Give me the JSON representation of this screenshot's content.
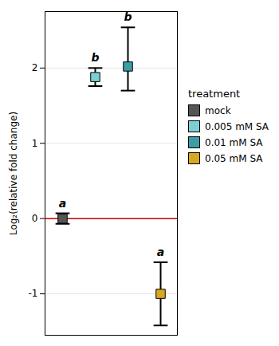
{
  "chart_data": {
    "type": "scatter",
    "categories": [
      "mock",
      "0.005 mM SA",
      "0.01 mM SA",
      "0.05 mM SA"
    ],
    "values": [
      0.0,
      1.88,
      2.02,
      -1.0
    ],
    "error_upper": [
      0.07,
      0.12,
      0.52,
      0.42
    ],
    "error_lower": [
      0.07,
      0.12,
      0.32,
      0.42
    ],
    "colors": [
      "#555555",
      "#7ecfd4",
      "#3a9ea5",
      "#d4a820"
    ],
    "annotations": [
      "a",
      "b",
      "b",
      "a"
    ],
    "ylabel": "Log₂(relative fold change)",
    "ylim": [
      -1.55,
      2.75
    ],
    "yticks": [
      -1,
      0,
      1,
      2
    ],
    "hline": {
      "y": 0.0,
      "color": "#cc0000"
    },
    "legend_title": "treatment",
    "legend": "right",
    "marker": "square",
    "grid": true,
    "tick_labels": "y"
  }
}
